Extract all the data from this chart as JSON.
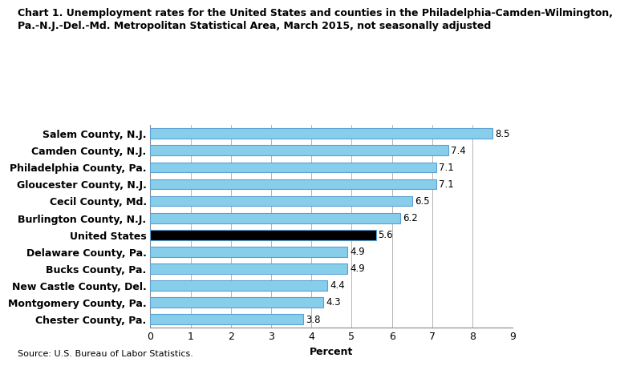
{
  "title_line1": "Chart 1. Unemployment rates for the United States and counties in the Philadelphia-Camden-Wilmington,",
  "title_line2": "Pa.-N.J.-Del.-Md. Metropolitan Statistical Area, March 2015, not seasonally adjusted",
  "categories": [
    "Chester County, Pa.",
    "Montgomery County, Pa.",
    "New Castle County, Del.",
    "Bucks County, Pa.",
    "Delaware County, Pa.",
    "United States",
    "Burlington County, N.J.",
    "Cecil County, Md.",
    "Gloucester County, N.J.",
    "Philadelphia County, Pa.",
    "Camden County, N.J.",
    "Salem County, N.J."
  ],
  "values": [
    3.8,
    4.3,
    4.4,
    4.9,
    4.9,
    5.6,
    6.2,
    6.5,
    7.1,
    7.1,
    7.4,
    8.5
  ],
  "bar_colors": [
    "#87CEEB",
    "#87CEEB",
    "#87CEEB",
    "#87CEEB",
    "#87CEEB",
    "#000000",
    "#87CEEB",
    "#87CEEB",
    "#87CEEB",
    "#87CEEB",
    "#87CEEB",
    "#87CEEB"
  ],
  "edge_color": "#5a9fd4",
  "xlabel": "Percent",
  "xlim": [
    0,
    9
  ],
  "xticks": [
    0,
    1,
    2,
    3,
    4,
    5,
    6,
    7,
    8,
    9
  ],
  "source": "Source: U.S. Bureau of Labor Statistics.",
  "title_fontsize": 9.0,
  "label_fontsize": 9.0,
  "tick_fontsize": 9.0,
  "value_fontsize": 8.5,
  "bar_height": 0.6,
  "grid_color": "#aaaaaa",
  "background_color": "#ffffff",
  "plot_bg_color": "#ffffff"
}
